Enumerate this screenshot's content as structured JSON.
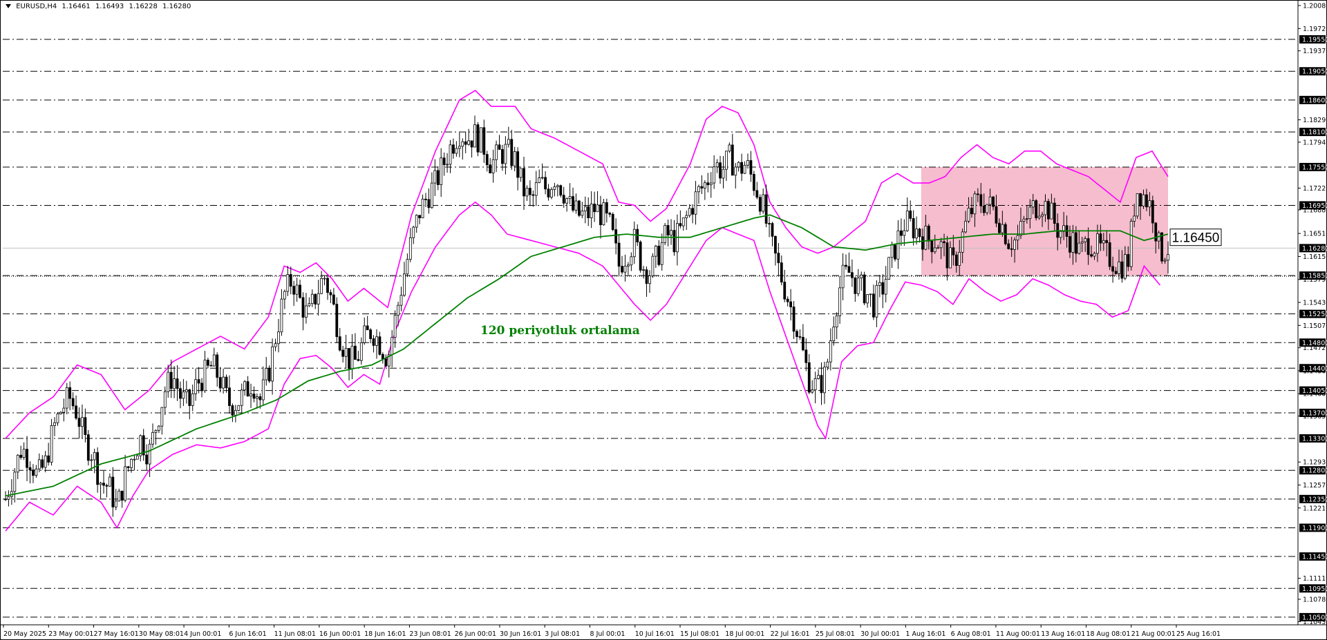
{
  "header": {
    "symbol": "EURUSD,H4",
    "open": "1.16461",
    "high": "1.16493",
    "low": "1.16228",
    "close": "1.16280"
  },
  "colors": {
    "candles": "#000000",
    "bollinger": "#ff00ff",
    "ma": "#008000",
    "zone": "#f4b6c8",
    "level_line": "#000000",
    "grid_bg": "#ffffff"
  },
  "annotations": {
    "ma_label": "120 periyotluk ortalama",
    "price_tag": "1.16450"
  },
  "chart_data": {
    "type": "candlestick",
    "symbol": "EURUSD",
    "timeframe": "H4",
    "ylim": [
      1.1038,
      1.2008
    ],
    "axis_ticks_plain": [
      "1.20080",
      "1.19720",
      "1.19370",
      "1.18290",
      "1.17940",
      "1.17220",
      "1.16880",
      "1.16510",
      "1.16150",
      "1.15790",
      "1.15430",
      "1.15070",
      "1.14720",
      "1.14360",
      "1.14000",
      "1.13650",
      "1.12930",
      "1.12570",
      "1.12210",
      "1.11110",
      "1.10780",
      "1.10430"
    ],
    "highlighted_levels": [
      "1.19550",
      "1.19050",
      "1.18600",
      "1.18100",
      "1.17550",
      "1.16950",
      "1.16280",
      "1.15850",
      "1.15250",
      "1.14800",
      "1.14400",
      "1.14050",
      "1.13700",
      "1.13300",
      "1.12800",
      "1.12350",
      "1.11900",
      "1.11450",
      "1.10950",
      "1.10500"
    ],
    "horizontal_lines": [
      1.1955,
      1.1905,
      1.186,
      1.181,
      1.1755,
      1.1695,
      1.1585,
      1.1525,
      1.148,
      1.144,
      1.1405,
      1.137,
      1.133,
      1.128,
      1.1235,
      1.119,
      1.1145,
      1.1095,
      1.105
    ],
    "current_price": 1.1628,
    "x_labels": [
      "20 May 2025",
      "23 May 00:01",
      "27 May 16:01",
      "30 May 08:01",
      "4 Jun 00:01",
      "6 Jun 16:01",
      "11 Jun 08:01",
      "16 Jun 00:01",
      "18 Jun 16:01",
      "23 Jun 08:01",
      "26 Jun 00:01",
      "30 Jun 16:01",
      "3 Jul 08:01",
      "8 Jul 00:01",
      "10 Jul 16:01",
      "15 Jul 08:01",
      "18 Jul 00:01",
      "22 Jul 16:01",
      "25 Jul 08:01",
      "30 Jul 00:01",
      "1 Aug 16:01",
      "6 Aug 08:01",
      "11 Aug 00:01",
      "13 Aug 16:01",
      "18 Aug 08:01",
      "21 Aug 00:01",
      "25 Aug 16:01"
    ],
    "price_path": [
      [
        0,
        1.1235
      ],
      [
        1,
        1.1275
      ],
      [
        2,
        1.1315
      ],
      [
        3,
        1.13
      ],
      [
        4,
        1.127
      ],
      [
        5,
        1.129
      ],
      [
        6,
        1.1345
      ],
      [
        7,
        1.1375
      ],
      [
        8,
        1.1395
      ],
      [
        9,
        1.137
      ],
      [
        10,
        1.1325
      ],
      [
        11,
        1.1305
      ],
      [
        12,
        1.126
      ],
      [
        13,
        1.1255
      ],
      [
        14,
        1.122
      ],
      [
        15,
        1.127
      ],
      [
        16,
        1.1305
      ],
      [
        17,
        1.133
      ],
      [
        18,
        1.1305
      ],
      [
        19,
        1.1355
      ],
      [
        20,
        1.1405
      ],
      [
        21,
        1.143
      ],
      [
        22,
        1.1395
      ],
      [
        23,
        1.138
      ],
      [
        24,
        1.1415
      ],
      [
        25,
        1.143
      ],
      [
        26,
        1.1445
      ],
      [
        27,
        1.142
      ],
      [
        28,
        1.1385
      ],
      [
        29,
        1.1385
      ],
      [
        30,
        1.14
      ],
      [
        31,
        1.142
      ],
      [
        32,
        1.139
      ],
      [
        33,
        1.143
      ],
      [
        34,
        1.1495
      ],
      [
        35,
        1.1555
      ],
      [
        36,
        1.158
      ],
      [
        37,
        1.1545
      ],
      [
        38,
        1.152
      ],
      [
        39,
        1.1555
      ],
      [
        40,
        1.1585
      ],
      [
        41,
        1.1545
      ],
      [
        42,
        1.149
      ],
      [
        43,
        1.1455
      ],
      [
        44,
        1.145
      ],
      [
        45,
        1.1485
      ],
      [
        46,
        1.15
      ],
      [
        47,
        1.148
      ],
      [
        48,
        1.1455
      ],
      [
        49,
        1.152
      ],
      [
        50,
        1.1585
      ],
      [
        51,
        1.164
      ],
      [
        52,
        1.1685
      ],
      [
        53,
        1.171
      ],
      [
        54,
        1.173
      ],
      [
        55,
        1.176
      ],
      [
        56,
        1.179
      ],
      [
        57,
        1.181
      ],
      [
        58,
        1.18
      ],
      [
        59,
        1.1805
      ],
      [
        60,
        1.179
      ],
      [
        61,
        1.176
      ],
      [
        62,
        1.1775
      ],
      [
        63,
        1.178
      ],
      [
        64,
        1.1765
      ],
      [
        65,
        1.172
      ],
      [
        66,
        1.17
      ],
      [
        67,
        1.173
      ],
      [
        68,
        1.172
      ],
      [
        69,
        1.174
      ],
      [
        70,
        1.172
      ],
      [
        71,
        1.169
      ],
      [
        72,
        1.168
      ],
      [
        73,
        1.168
      ],
      [
        74,
        1.169
      ],
      [
        75,
        1.168
      ],
      [
        76,
        1.166
      ],
      [
        77,
        1.16
      ],
      [
        78,
        1.162
      ],
      [
        79,
        1.164
      ],
      [
        80,
        1.16
      ],
      [
        81,
        1.159
      ],
      [
        82,
        1.162
      ],
      [
        83,
        1.165
      ],
      [
        84,
        1.164
      ],
      [
        85,
        1.166
      ],
      [
        86,
        1.169
      ],
      [
        87,
        1.1715
      ],
      [
        88,
        1.173
      ],
      [
        89,
        1.176
      ],
      [
        90,
        1.175
      ],
      [
        91,
        1.177
      ],
      [
        92,
        1.175
      ],
      [
        93,
        1.176
      ],
      [
        94,
        1.173
      ],
      [
        95,
        1.17
      ],
      [
        96,
        1.164
      ],
      [
        97,
        1.16
      ],
      [
        98,
        1.156
      ],
      [
        99,
        1.152
      ],
      [
        100,
        1.147
      ],
      [
        101,
        1.142
      ],
      [
        102,
        1.141
      ],
      [
        103,
        1.143
      ],
      [
        104,
        1.152
      ],
      [
        105,
        1.158
      ],
      [
        106,
        1.159
      ],
      [
        107,
        1.157
      ],
      [
        108,
        1.156
      ],
      [
        109,
        1.154
      ],
      [
        110,
        1.156
      ],
      [
        111,
        1.16
      ],
      [
        112,
        1.164
      ],
      [
        113,
        1.167
      ],
      [
        114,
        1.166
      ],
      [
        115,
        1.165
      ],
      [
        116,
        1.164
      ],
      [
        117,
        1.164
      ],
      [
        118,
        1.162
      ],
      [
        119,
        1.16
      ],
      [
        120,
        1.164
      ],
      [
        121,
        1.168
      ],
      [
        122,
        1.17
      ],
      [
        123,
        1.17
      ],
      [
        124,
        1.169
      ],
      [
        125,
        1.167
      ],
      [
        126,
        1.164
      ],
      [
        127,
        1.164
      ],
      [
        128,
        1.167
      ],
      [
        129,
        1.169
      ],
      [
        130,
        1.17
      ],
      [
        131,
        1.169
      ],
      [
        132,
        1.166
      ],
      [
        133,
        1.165
      ],
      [
        134,
        1.164
      ],
      [
        135,
        1.162
      ],
      [
        136,
        1.164
      ],
      [
        137,
        1.163
      ],
      [
        138,
        1.162
      ],
      [
        139,
        1.161
      ],
      [
        140,
        1.16
      ],
      [
        141,
        1.161
      ],
      [
        142,
        1.172
      ],
      [
        143,
        1.171
      ],
      [
        144,
        1.169
      ],
      [
        145,
        1.162
      ],
      [
        146,
        1.1628
      ]
    ],
    "upper_band_path": [
      [
        0,
        1.133
      ],
      [
        3,
        1.137
      ],
      [
        6,
        1.1395
      ],
      [
        9,
        1.1445
      ],
      [
        12,
        1.143
      ],
      [
        15,
        1.1375
      ],
      [
        18,
        1.1405
      ],
      [
        21,
        1.145
      ],
      [
        24,
        1.147
      ],
      [
        27,
        1.149
      ],
      [
        30,
        1.147
      ],
      [
        33,
        1.152
      ],
      [
        35,
        1.16
      ],
      [
        37,
        1.159
      ],
      [
        39,
        1.1605
      ],
      [
        41,
        1.158
      ],
      [
        43,
        1.1545
      ],
      [
        45,
        1.1565
      ],
      [
        48,
        1.1535
      ],
      [
        51,
        1.168
      ],
      [
        54,
        1.178
      ],
      [
        57,
        1.186
      ],
      [
        59,
        1.1875
      ],
      [
        61,
        1.185
      ],
      [
        64,
        1.185
      ],
      [
        66,
        1.1815
      ],
      [
        69,
        1.18
      ],
      [
        72,
        1.178
      ],
      [
        75,
        1.176
      ],
      [
        77,
        1.17
      ],
      [
        79,
        1.1695
      ],
      [
        81,
        1.167
      ],
      [
        83,
        1.169
      ],
      [
        86,
        1.176
      ],
      [
        88,
        1.183
      ],
      [
        90,
        1.185
      ],
      [
        92,
        1.184
      ],
      [
        94,
        1.179
      ],
      [
        96,
        1.17
      ],
      [
        98,
        1.166
      ],
      [
        100,
        1.163
      ],
      [
        102,
        1.162
      ],
      [
        104,
        1.163
      ],
      [
        106,
        1.165
      ],
      [
        108,
        1.167
      ],
      [
        110,
        1.173
      ],
      [
        112,
        1.1745
      ],
      [
        114,
        1.173
      ],
      [
        116,
        1.173
      ],
      [
        118,
        1.174
      ],
      [
        120,
        1.177
      ],
      [
        122,
        1.179
      ],
      [
        124,
        1.177
      ],
      [
        126,
        1.176
      ],
      [
        128,
        1.178
      ],
      [
        130,
        1.178
      ],
      [
        132,
        1.176
      ],
      [
        134,
        1.175
      ],
      [
        136,
        1.174
      ],
      [
        138,
        1.172
      ],
      [
        140,
        1.17
      ],
      [
        142,
        1.177
      ],
      [
        144,
        1.178
      ],
      [
        146,
        1.174
      ]
    ],
    "lower_band_path": [
      [
        0,
        1.1185
      ],
      [
        3,
        1.123
      ],
      [
        6,
        1.121
      ],
      [
        9,
        1.1255
      ],
      [
        12,
        1.123
      ],
      [
        14,
        1.119
      ],
      [
        16,
        1.124
      ],
      [
        18,
        1.128
      ],
      [
        21,
        1.1305
      ],
      [
        24,
        1.132
      ],
      [
        27,
        1.1315
      ],
      [
        30,
        1.1325
      ],
      [
        33,
        1.1345
      ],
      [
        35,
        1.1415
      ],
      [
        37,
        1.1455
      ],
      [
        39,
        1.146
      ],
      [
        41,
        1.144
      ],
      [
        43,
        1.141
      ],
      [
        45,
        1.143
      ],
      [
        47,
        1.1415
      ],
      [
        49,
        1.15
      ],
      [
        51,
        1.156
      ],
      [
        54,
        1.163
      ],
      [
        57,
        1.168
      ],
      [
        59,
        1.17
      ],
      [
        61,
        1.168
      ],
      [
        63,
        1.165
      ],
      [
        66,
        1.164
      ],
      [
        69,
        1.163
      ],
      [
        72,
        1.162
      ],
      [
        75,
        1.16
      ],
      [
        77,
        1.157
      ],
      [
        79,
        1.154
      ],
      [
        81,
        1.1515
      ],
      [
        83,
        1.154
      ],
      [
        86,
        1.16
      ],
      [
        88,
        1.164
      ],
      [
        90,
        1.166
      ],
      [
        92,
        1.165
      ],
      [
        94,
        1.164
      ],
      [
        96,
        1.156
      ],
      [
        98,
        1.149
      ],
      [
        100,
        1.142
      ],
      [
        102,
        1.135
      ],
      [
        103,
        1.133
      ],
      [
        105,
        1.145
      ],
      [
        107,
        1.1475
      ],
      [
        109,
        1.148
      ],
      [
        111,
        1.153
      ],
      [
        113,
        1.1575
      ],
      [
        115,
        1.157
      ],
      [
        117,
        1.156
      ],
      [
        119,
        1.154
      ],
      [
        121,
        1.158
      ],
      [
        123,
        1.156
      ],
      [
        125,
        1.1545
      ],
      [
        127,
        1.1555
      ],
      [
        129,
        1.158
      ],
      [
        131,
        1.157
      ],
      [
        133,
        1.1555
      ],
      [
        135,
        1.1545
      ],
      [
        137,
        1.154
      ],
      [
        139,
        1.152
      ],
      [
        141,
        1.153
      ],
      [
        143,
        1.16
      ],
      [
        145,
        1.157
      ]
    ],
    "ma120_path": [
      [
        0,
        1.124
      ],
      [
        6,
        1.1255
      ],
      [
        12,
        1.129
      ],
      [
        18,
        1.131
      ],
      [
        24,
        1.1345
      ],
      [
        30,
        1.137
      ],
      [
        34,
        1.139
      ],
      [
        38,
        1.142
      ],
      [
        42,
        1.1435
      ],
      [
        46,
        1.1445
      ],
      [
        50,
        1.147
      ],
      [
        54,
        1.151
      ],
      [
        58,
        1.155
      ],
      [
        62,
        1.158
      ],
      [
        66,
        1.1615
      ],
      [
        70,
        1.163
      ],
      [
        74,
        1.1645
      ],
      [
        78,
        1.165
      ],
      [
        82,
        1.1645
      ],
      [
        86,
        1.1645
      ],
      [
        90,
        1.166
      ],
      [
        94,
        1.1675
      ],
      [
        96,
        1.168
      ],
      [
        100,
        1.166
      ],
      [
        104,
        1.163
      ],
      [
        108,
        1.1625
      ],
      [
        112,
        1.1635
      ],
      [
        116,
        1.164
      ],
      [
        120,
        1.1645
      ],
      [
        124,
        1.165
      ],
      [
        128,
        1.165
      ],
      [
        132,
        1.1655
      ],
      [
        136,
        1.1655
      ],
      [
        140,
        1.1655
      ],
      [
        143,
        1.164
      ],
      [
        146,
        1.165
      ]
    ],
    "zone": {
      "x_start": 115,
      "x_end": 146,
      "y_top": 1.1755,
      "y_bottom": 1.1585
    }
  }
}
